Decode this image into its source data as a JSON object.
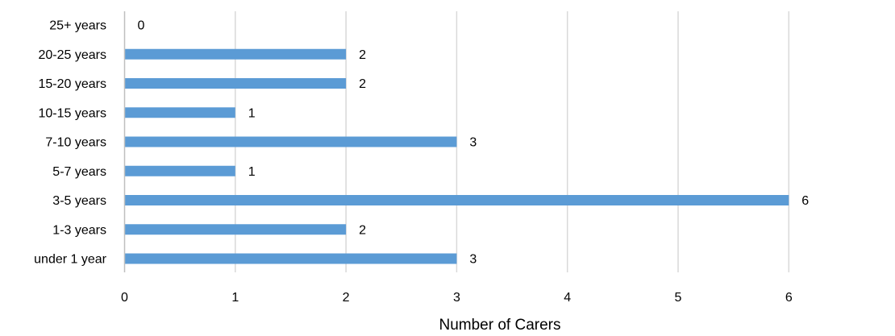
{
  "chart_data": {
    "type": "bar",
    "orientation": "horizontal",
    "categories": [
      "under 1 year",
      "1-3 years",
      "3-5 years",
      "5-7 years",
      "7-10 years",
      "10-15 years",
      "15-20 years",
      "20-25 years",
      "25+ years"
    ],
    "values": [
      3,
      2,
      6,
      1,
      3,
      1,
      2,
      2,
      0
    ],
    "title": "",
    "xlabel": "Number of Carers",
    "ylabel": "",
    "xlim": [
      0,
      7
    ],
    "xticks": [
      0,
      1,
      2,
      3,
      4,
      5,
      6,
      7
    ],
    "grid": true,
    "legend": "none",
    "data_labels": true,
    "colors": {
      "bar": "#5B9BD5",
      "grid": "#D9D9D9",
      "axis": "#BFBFBF",
      "text": "#000000"
    }
  }
}
